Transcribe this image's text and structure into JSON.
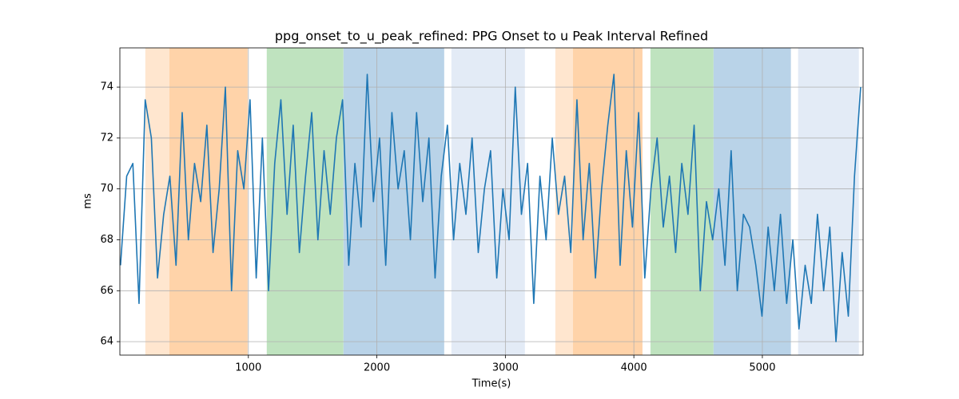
{
  "chart_data": {
    "type": "line",
    "title": "ppg_onset_to_u_peak_refined: PPG Onset to u Peak Interval Refined",
    "x_label": "Time(s)",
    "y_label": "ms",
    "xlim": [
      0,
      5784
    ],
    "ylim": [
      63.47,
      75.54
    ],
    "xticks": [
      1000,
      2000,
      3000,
      4000,
      5000
    ],
    "yticks": [
      64,
      66,
      68,
      70,
      72,
      74
    ],
    "grid": true,
    "spans": [
      {
        "x0": 198,
        "x1": 385,
        "color": "#ffe6cf"
      },
      {
        "x0": 385,
        "x1": 994,
        "color": "#ffd3a9"
      },
      {
        "x0": 1143,
        "x1": 1740,
        "color": "#bfe3bf"
      },
      {
        "x0": 1740,
        "x1": 2524,
        "color": "#b9d3e8"
      },
      {
        "x0": 2580,
        "x1": 3152,
        "color": "#e3ebf6"
      },
      {
        "x0": 3389,
        "x1": 3526,
        "color": "#ffe6cf"
      },
      {
        "x0": 3526,
        "x1": 4067,
        "color": "#ffd3a9"
      },
      {
        "x0": 4129,
        "x1": 4620,
        "color": "#bfe3bf"
      },
      {
        "x0": 4620,
        "x1": 5222,
        "color": "#b9d3e8"
      },
      {
        "x0": 5278,
        "x1": 5751,
        "color": "#e3ebf6"
      }
    ],
    "x": [
      5,
      53,
      101,
      149,
      197,
      245,
      293,
      341,
      389,
      437,
      485,
      533,
      581,
      629,
      677,
      725,
      773,
      821,
      869,
      917,
      965,
      1013,
      1061,
      1109,
      1157,
      1205,
      1253,
      1301,
      1349,
      1397,
      1445,
      1493,
      1541,
      1589,
      1637,
      1685,
      1733,
      1781,
      1829,
      1877,
      1925,
      1973,
      2021,
      2069,
      2117,
      2165,
      2213,
      2261,
      2309,
      2357,
      2405,
      2453,
      2501,
      2549,
      2597,
      2645,
      2693,
      2741,
      2789,
      2837,
      2885,
      2933,
      2981,
      3029,
      3077,
      3125,
      3173,
      3221,
      3269,
      3317,
      3365,
      3413,
      3461,
      3509,
      3557,
      3605,
      3653,
      3701,
      3749,
      3797,
      3845,
      3893,
      3941,
      3989,
      4037,
      4085,
      4133,
      4181,
      4229,
      4277,
      4325,
      4373,
      4421,
      4469,
      4517,
      4565,
      4613,
      4661,
      4709,
      4757,
      4805,
      4853,
      4901,
      4949,
      4997,
      5045,
      5093,
      5141,
      5189,
      5237,
      5285,
      5333,
      5381,
      5429,
      5477,
      5525,
      5573,
      5621,
      5669,
      5717,
      5765
    ],
    "series": [
      {
        "color": "#1f77b4",
        "values": [
          67,
          70.5,
          71,
          65.5,
          73.5,
          72,
          66.5,
          69,
          70.5,
          67,
          73,
          68,
          71,
          69.5,
          72.5,
          67.5,
          70,
          74,
          66,
          71.5,
          70,
          73.5,
          66.5,
          72,
          66,
          71,
          73.5,
          69,
          72.5,
          67.5,
          70.5,
          73,
          68,
          71.5,
          69,
          72,
          73.5,
          67,
          71,
          68.5,
          74.5,
          69.5,
          72,
          67,
          73,
          70,
          71.5,
          68,
          73,
          69.5,
          72,
          66.5,
          70.5,
          72.5,
          68,
          71,
          69,
          72,
          67.5,
          70,
          71.5,
          66.5,
          70,
          68,
          74,
          69,
          71,
          65.5,
          70.5,
          68,
          72,
          69,
          70.5,
          67.5,
          73.5,
          68,
          71,
          66.5,
          70,
          72.5,
          74.5,
          67,
          71.5,
          68.5,
          73,
          66.5,
          70,
          72,
          68.5,
          70.5,
          67.5,
          71,
          69,
          72.5,
          66,
          69.5,
          68,
          70,
          67,
          71.5,
          66,
          69,
          68.5,
          67,
          65,
          68.5,
          66,
          69,
          65.5,
          68,
          64.5,
          67,
          65.5,
          69,
          66,
          68.5,
          64,
          67.5,
          65,
          70.5,
          74
        ]
      }
    ]
  }
}
